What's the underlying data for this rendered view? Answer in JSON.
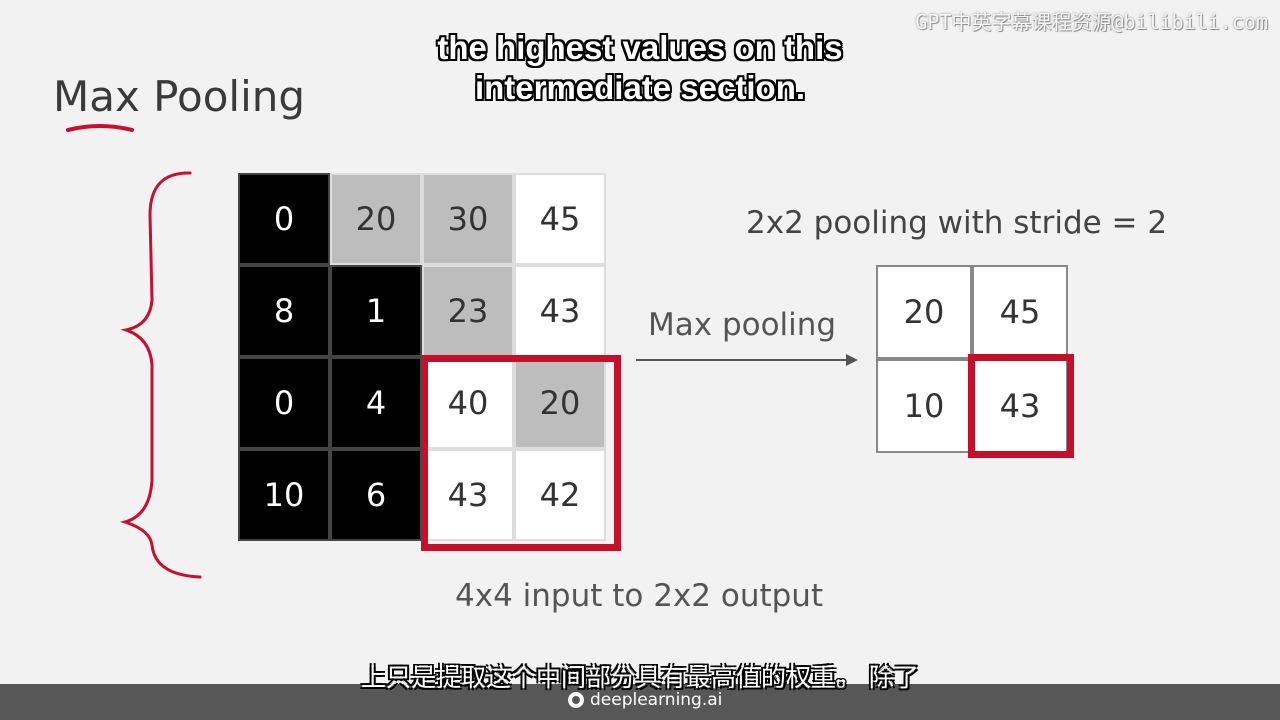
{
  "subtitle_en": {
    "line1": "the highest values on this",
    "line2": "intermediate section."
  },
  "watermark": "GPT中英字幕课程资源@bilibili.com",
  "slide": {
    "title": "Max Pooling",
    "input_grid": [
      [
        "0",
        "20",
        "30",
        "45"
      ],
      [
        "8",
        "1",
        "23",
        "43"
      ],
      [
        "0",
        "4",
        "40",
        "20"
      ],
      [
        "10",
        "6",
        "43",
        "42"
      ]
    ],
    "pooling_label": "2x2 pooling with stride = 2",
    "arrow_label": "Max pooling",
    "output_grid": [
      [
        "20",
        "45"
      ],
      [
        "10",
        "43"
      ]
    ],
    "caption": "4x4 input to 2x2 output"
  },
  "subtitle_cn": "上只是提取这个中间部分具有最高值的权重。 除了",
  "brand": "deeplearning.ai",
  "colors": {
    "highlight_red": "#c4102a",
    "annotation_red": "#c8102e",
    "cell_black": "#000000",
    "cell_gray": "#bdbdbd"
  }
}
